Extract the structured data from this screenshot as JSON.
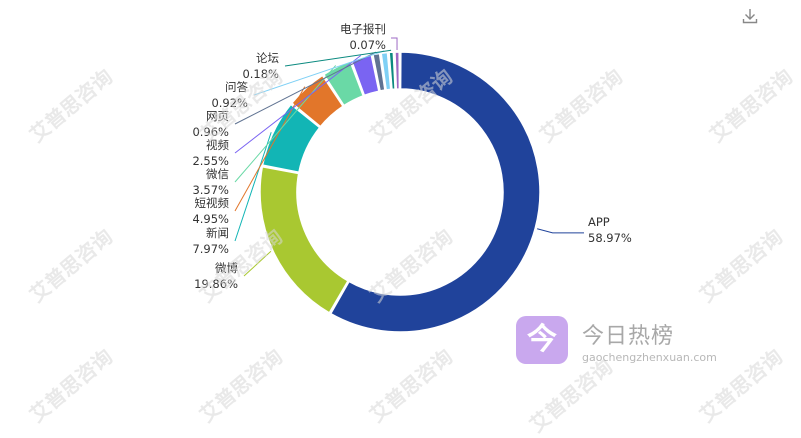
{
  "chart_data": {
    "type": "pie",
    "donut": true,
    "slices": [
      {
        "name": "APP",
        "value": 58.97,
        "label": "58.97%",
        "color": "#20439b"
      },
      {
        "name": "微博",
        "value": 19.86,
        "label": "19.86%",
        "color": "#a9c831"
      },
      {
        "name": "新闻",
        "value": 7.97,
        "label": "7.97%",
        "color": "#12b5b5"
      },
      {
        "name": "短视频",
        "value": 4.95,
        "label": "4.95%",
        "color": "#e2762a"
      },
      {
        "name": "微信",
        "value": 3.57,
        "label": "3.57%",
        "color": "#6ad9a6"
      },
      {
        "name": "视频",
        "value": 2.55,
        "label": "2.55%",
        "color": "#7a64f2"
      },
      {
        "name": "网页",
        "value": 0.96,
        "label": "0.96%",
        "color": "#607392"
      },
      {
        "name": "问答",
        "value": 0.92,
        "label": "0.92%",
        "color": "#7fd0f5"
      },
      {
        "name": "论坛",
        "value": 0.18,
        "label": "0.18%",
        "color": "#0c8a80"
      },
      {
        "name": "电子报刊",
        "value": 0.07,
        "label": "0.07%",
        "color": "#9d69c4"
      }
    ]
  },
  "toolbar": {
    "download_icon": "download-icon"
  },
  "watermark": {
    "brand": "今日热榜",
    "url": "gaochengzhenxuan.com",
    "badge_glyph": "今",
    "badge_color": "#c9a8ee",
    "tile_text": "艾普思咨询"
  }
}
